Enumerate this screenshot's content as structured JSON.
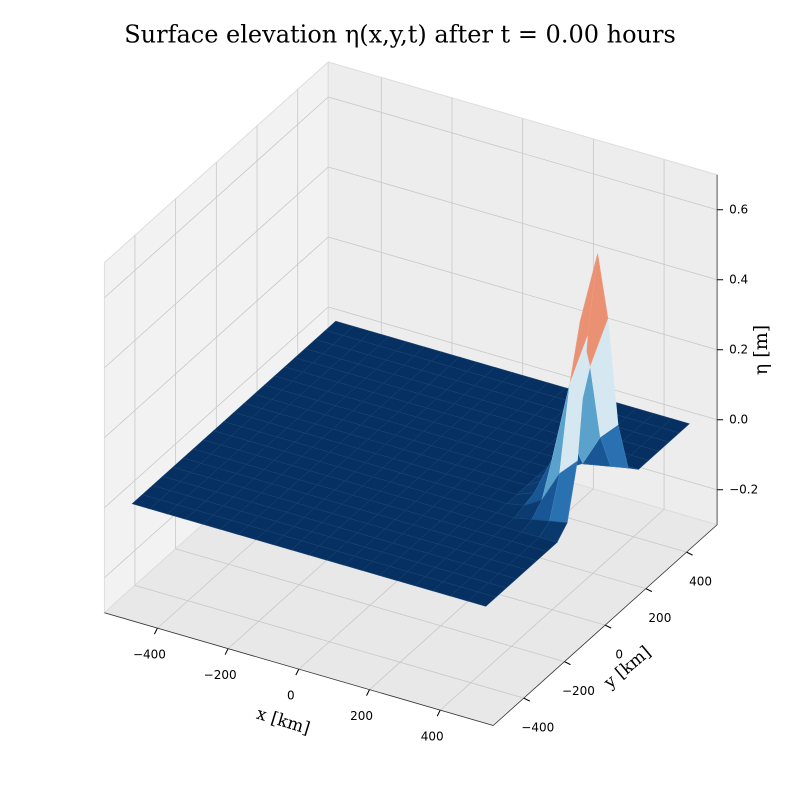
{
  "chart_data": {
    "type": "surface",
    "title": "Surface elevation η(x,y,t) after t = 0.00 hours",
    "xlabel": "x [km]",
    "ylabel": "y [km]",
    "zlabel": "η [m]",
    "xlim": [
      -550,
      550
    ],
    "ylim": [
      -550,
      550
    ],
    "zlim": [
      -0.3,
      0.7
    ],
    "xticks": [
      {
        "value": -400,
        "label": "−400"
      },
      {
        "value": -200,
        "label": "−200"
      },
      0,
      200,
      400
    ],
    "yticks": [
      {
        "value": -400,
        "label": "−400"
      },
      {
        "value": -200,
        "label": "−200"
      },
      0,
      200,
      400
    ],
    "zticks": [
      {
        "value": -0.2,
        "label": "−0.2"
      },
      {
        "value": 0,
        "label": "0.0"
      },
      0.2,
      0.4,
      0.6
    ],
    "grid": true,
    "colormap": [
      "#053061",
      "#2166ac",
      "#4393c3",
      "#92c5de",
      "#d1e5f0",
      "#f7f7f7",
      "#fddbc7",
      "#f4a582",
      "#d6604d",
      "#b2182b",
      "#67001f"
    ],
    "x": [
      -500,
      -450,
      -400,
      -350,
      -300,
      -250,
      -200,
      -150,
      -100,
      -50,
      0,
      50,
      100,
      150,
      200,
      250,
      300,
      350,
      400,
      450,
      500
    ],
    "y": [
      -500,
      -450,
      -400,
      -350,
      -300,
      -250,
      -200,
      -150,
      -100,
      -50,
      0,
      50,
      100,
      150,
      200,
      250,
      300,
      350,
      400,
      450,
      500
    ],
    "z": [
      [
        0,
        0,
        0,
        0,
        0,
        0,
        0,
        0,
        0,
        0,
        0,
        0,
        0,
        0,
        0,
        0,
        0,
        0,
        0,
        0,
        0
      ],
      [
        0,
        0,
        0,
        0,
        0,
        0,
        0,
        0,
        0,
        0,
        0,
        0,
        0,
        0,
        0,
        0,
        0,
        0,
        0,
        0,
        0
      ],
      [
        0,
        0,
        0,
        0,
        0,
        0,
        0,
        0,
        0,
        0,
        0,
        0,
        0,
        0,
        0,
        0,
        0,
        0,
        0,
        0,
        0
      ],
      [
        0,
        0,
        0,
        0,
        0,
        0,
        0,
        0,
        0,
        0,
        0,
        0,
        0,
        0,
        0,
        0,
        0,
        0,
        0,
        0,
        0
      ],
      [
        0,
        0,
        0,
        0,
        0,
        0,
        0,
        0,
        0,
        0,
        0,
        0,
        0,
        0,
        0,
        0,
        0,
        0,
        0,
        0,
        0
      ],
      [
        0,
        0,
        0,
        0,
        0,
        0,
        0,
        0,
        0,
        0,
        0,
        0,
        0,
        0,
        0,
        0,
        0,
        0,
        0,
        0,
        0
      ],
      [
        0,
        0,
        0,
        0,
        0,
        0,
        0,
        0,
        0,
        0,
        0,
        0,
        0,
        0,
        0,
        0,
        0,
        0,
        0,
        0,
        0
      ],
      [
        0,
        0,
        0,
        0,
        0,
        0,
        0,
        0,
        0,
        0,
        0,
        0,
        0,
        0,
        0,
        0,
        0,
        0,
        0,
        0,
        0
      ],
      [
        0,
        0,
        0,
        0,
        0,
        0,
        0,
        0,
        0,
        0,
        0,
        0,
        0,
        0,
        0,
        0,
        0,
        0,
        0,
        0,
        0
      ],
      [
        0,
        0,
        0,
        0,
        0,
        0,
        0,
        0,
        0,
        0,
        0,
        0,
        0,
        0,
        0,
        0,
        0,
        0,
        0,
        0,
        0
      ],
      [
        0,
        0,
        0,
        0,
        0,
        0,
        0,
        0,
        0,
        0,
        0,
        0,
        0,
        0,
        0,
        0,
        0,
        0,
        0,
        0,
        0
      ],
      [
        0,
        0,
        0,
        0,
        0,
        0,
        0,
        0,
        0,
        0,
        0,
        0,
        0,
        0,
        0,
        0,
        0,
        0,
        0,
        0,
        0
      ],
      [
        0,
        0,
        0,
        0,
        0,
        0,
        0,
        0,
        0,
        0,
        0,
        0,
        0,
        0,
        0,
        0,
        0,
        0,
        0,
        0,
        0
      ],
      [
        0,
        0,
        0,
        0,
        0,
        0,
        0,
        0,
        0,
        0,
        0,
        0,
        0,
        0,
        0,
        0,
        0,
        0,
        0,
        0,
        0
      ],
      [
        0,
        0,
        0,
        0,
        0,
        0,
        0,
        0,
        0,
        0,
        0,
        0,
        0,
        0,
        0,
        0,
        0,
        0,
        0,
        0,
        0
      ],
      [
        0,
        0,
        0,
        0,
        0,
        0,
        0,
        0,
        0,
        0,
        0,
        0,
        0,
        0,
        0,
        0,
        0,
        0,
        0,
        0,
        0
      ],
      [
        0,
        0,
        0,
        0,
        0,
        0,
        0,
        0,
        0,
        0,
        0,
        0,
        0,
        0,
        0,
        0,
        0,
        0,
        0,
        0,
        0
      ],
      [
        0,
        0,
        0,
        0,
        0,
        0,
        0,
        0,
        0,
        0.01,
        0.02,
        0.03,
        0.02,
        0.01,
        0,
        0,
        0,
        0,
        0,
        0,
        0
      ],
      [
        0,
        0,
        0,
        0,
        0,
        0,
        0,
        0,
        0.01,
        0.04,
        0.13,
        0.18,
        0.13,
        0.04,
        0.01,
        0,
        0,
        0,
        0,
        0,
        0
      ],
      [
        0,
        0,
        0,
        0,
        0,
        0,
        0,
        0,
        0.02,
        0.13,
        0.36,
        0.51,
        0.36,
        0.13,
        0.02,
        0,
        0,
        0,
        0,
        0,
        0
      ],
      [
        0,
        0,
        0,
        0,
        0,
        0,
        0,
        0,
        0.03,
        0.18,
        0.51,
        0.72,
        0.51,
        0.18,
        0.03,
        0,
        0,
        0,
        0,
        0,
        0
      ]
    ]
  }
}
